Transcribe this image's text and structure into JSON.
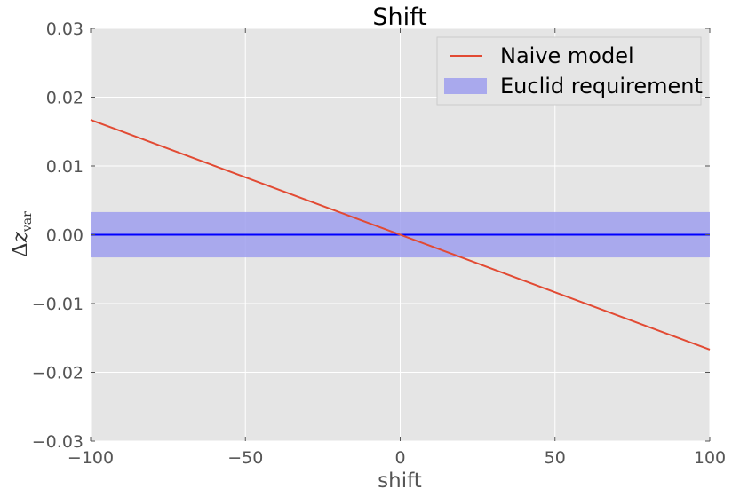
{
  "chart_data": {
    "type": "line",
    "title": "Shift",
    "xlabel": "shift",
    "ylabel": {
      "delta": "Δ",
      "z": "z",
      "sub": "var"
    },
    "xlim": [
      -100,
      100
    ],
    "ylim": [
      -0.03,
      0.03
    ],
    "xticks": [
      -100,
      -50,
      0,
      50,
      100
    ],
    "xtick_labels": [
      "−100",
      "−50",
      "0",
      "50",
      "100"
    ],
    "yticks": [
      -0.03,
      -0.02,
      -0.01,
      0.0,
      0.01,
      0.02,
      0.03
    ],
    "ytick_labels": [
      "−0.03",
      "−0.02",
      "−0.01",
      "0.00",
      "0.01",
      "0.02",
      "0.03"
    ],
    "grid": true,
    "legend_position": "top-right",
    "series": [
      {
        "name": "Naive model",
        "type": "line",
        "color": "#e24a33",
        "x": [
          -100,
          100
        ],
        "y": [
          0.0167,
          -0.0167
        ]
      },
      {
        "name": "",
        "type": "line",
        "color": "#0000ff",
        "x": [
          -100,
          100
        ],
        "y": [
          0.0,
          0.0
        ]
      }
    ],
    "band": {
      "name": "Euclid requirement",
      "color": "#9f9fef",
      "y_low": -0.0033,
      "y_high": 0.0033
    },
    "colors": {
      "background": "#e5e5e5",
      "grid": "#ffffff"
    }
  }
}
